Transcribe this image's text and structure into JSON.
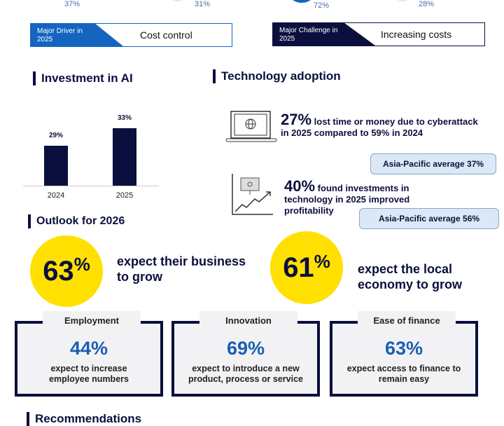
{
  "top_pcts": [
    "37%",
    "31%",
    "72%",
    "28%"
  ],
  "driver": {
    "label": "Major Driver in 2025",
    "value": "Cost control",
    "color": "#1565c0"
  },
  "challenge": {
    "label": "Major Challenge in 2025",
    "value": "Increasing costs",
    "color": "#0b0f3d"
  },
  "ai": {
    "title": "Investment in AI",
    "chart_data": {
      "type": "bar",
      "categories": [
        "2024",
        "2025"
      ],
      "values": [
        29,
        33
      ],
      "labels": [
        "29%",
        "33%"
      ],
      "ylim": [
        20,
        35
      ]
    }
  },
  "tech": {
    "title": "Technology adoption",
    "stat1": {
      "pct": "27%",
      "text1": "lost time or money due to cyberattack",
      "text2": "in 2025 compared to 59% in 2024",
      "ap": "Asia-Pacific average  37%"
    },
    "stat2": {
      "pct": "40%",
      "text1": "found investments in",
      "text2": "technology in 2025 improved",
      "text3": "profitability",
      "ap": "Asia-Pacific average  56%"
    }
  },
  "outlook": {
    "title": "Outlook for 2026",
    "a": {
      "pct": "63",
      "text1": "expect their business",
      "text2": "to grow"
    },
    "b": {
      "pct": "61",
      "text1": "expect the local",
      "text2": "economy to grow"
    },
    "pct_sign": "%"
  },
  "cards": [
    {
      "title": "Employment",
      "pct": "44%",
      "d1": "expect to increase",
      "d2": "employee numbers"
    },
    {
      "title": "Innovation",
      "pct": "69%",
      "d1": "expect to introduce a new",
      "d2": "product, process or service"
    },
    {
      "title": "Ease of finance",
      "pct": "63%",
      "d1": "expect access to finance to",
      "d2": "remain easy"
    }
  ],
  "recommendations": {
    "title": "Recommendations"
  }
}
